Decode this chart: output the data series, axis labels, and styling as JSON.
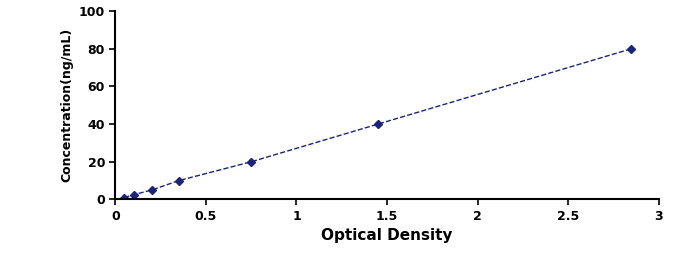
{
  "x": [
    0.05,
    0.1,
    0.2,
    0.35,
    0.75,
    1.45,
    2.85
  ],
  "y": [
    1,
    2.5,
    5,
    10,
    20,
    40,
    80
  ],
  "line_color": "#1a237e",
  "marker": "D",
  "marker_size": 4,
  "line_style": "--",
  "line_width": 1.0,
  "xlabel": "Optical Density",
  "ylabel": "Concentration(ng/mL)",
  "xlim": [
    0,
    3
  ],
  "ylim": [
    0,
    100
  ],
  "xticks": [
    0,
    0.5,
    1,
    1.5,
    2,
    2.5,
    3
  ],
  "yticks": [
    0,
    20,
    40,
    60,
    80,
    100
  ],
  "xtick_labels": [
    "0",
    "0.5",
    "1",
    "1.5",
    "2",
    "2.5",
    "3"
  ],
  "ytick_labels": [
    "0",
    "20",
    "40",
    "60",
    "80",
    "100"
  ],
  "xlabel_fontsize": 11,
  "ylabel_fontsize": 9,
  "tick_fontsize": 9,
  "background_color": "#ffffff",
  "fig_width": 6.79,
  "fig_height": 2.77,
  "dpi": 100
}
